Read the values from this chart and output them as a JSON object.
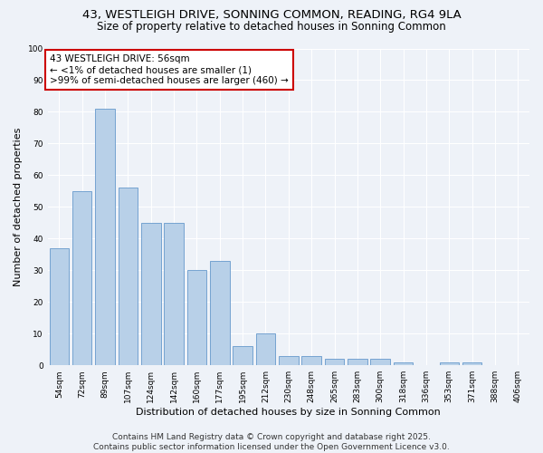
{
  "title": "43, WESTLEIGH DRIVE, SONNING COMMON, READING, RG4 9LA",
  "subtitle": "Size of property relative to detached houses in Sonning Common",
  "xlabel": "Distribution of detached houses by size in Sonning Common",
  "ylabel": "Number of detached properties",
  "categories": [
    "54sqm",
    "72sqm",
    "89sqm",
    "107sqm",
    "124sqm",
    "142sqm",
    "160sqm",
    "177sqm",
    "195sqm",
    "212sqm",
    "230sqm",
    "248sqm",
    "265sqm",
    "283sqm",
    "300sqm",
    "318sqm",
    "336sqm",
    "353sqm",
    "371sqm",
    "388sqm",
    "406sqm"
  ],
  "values": [
    37,
    55,
    81,
    56,
    45,
    45,
    30,
    33,
    6,
    10,
    3,
    3,
    2,
    2,
    2,
    1,
    0,
    1,
    1,
    0,
    0
  ],
  "bar_color": "#b8d0e8",
  "bar_edge_color": "#6699cc",
  "annotation_box_text": "43 WESTLEIGH DRIVE: 56sqm\n← <1% of detached houses are smaller (1)\n>99% of semi-detached houses are larger (460) →",
  "annotation_box_color": "#ffffff",
  "annotation_box_edge_color": "#cc0000",
  "background_color": "#eef2f8",
  "grid_color": "#ffffff",
  "ylim": [
    0,
    100
  ],
  "yticks": [
    0,
    10,
    20,
    30,
    40,
    50,
    60,
    70,
    80,
    90,
    100
  ],
  "footer_line1": "Contains HM Land Registry data © Crown copyright and database right 2025.",
  "footer_line2": "Contains public sector information licensed under the Open Government Licence v3.0.",
  "title_fontsize": 9.5,
  "subtitle_fontsize": 8.5,
  "xlabel_fontsize": 8,
  "ylabel_fontsize": 8,
  "tick_fontsize": 6.5,
  "annotation_fontsize": 7.5,
  "footer_fontsize": 6.5
}
